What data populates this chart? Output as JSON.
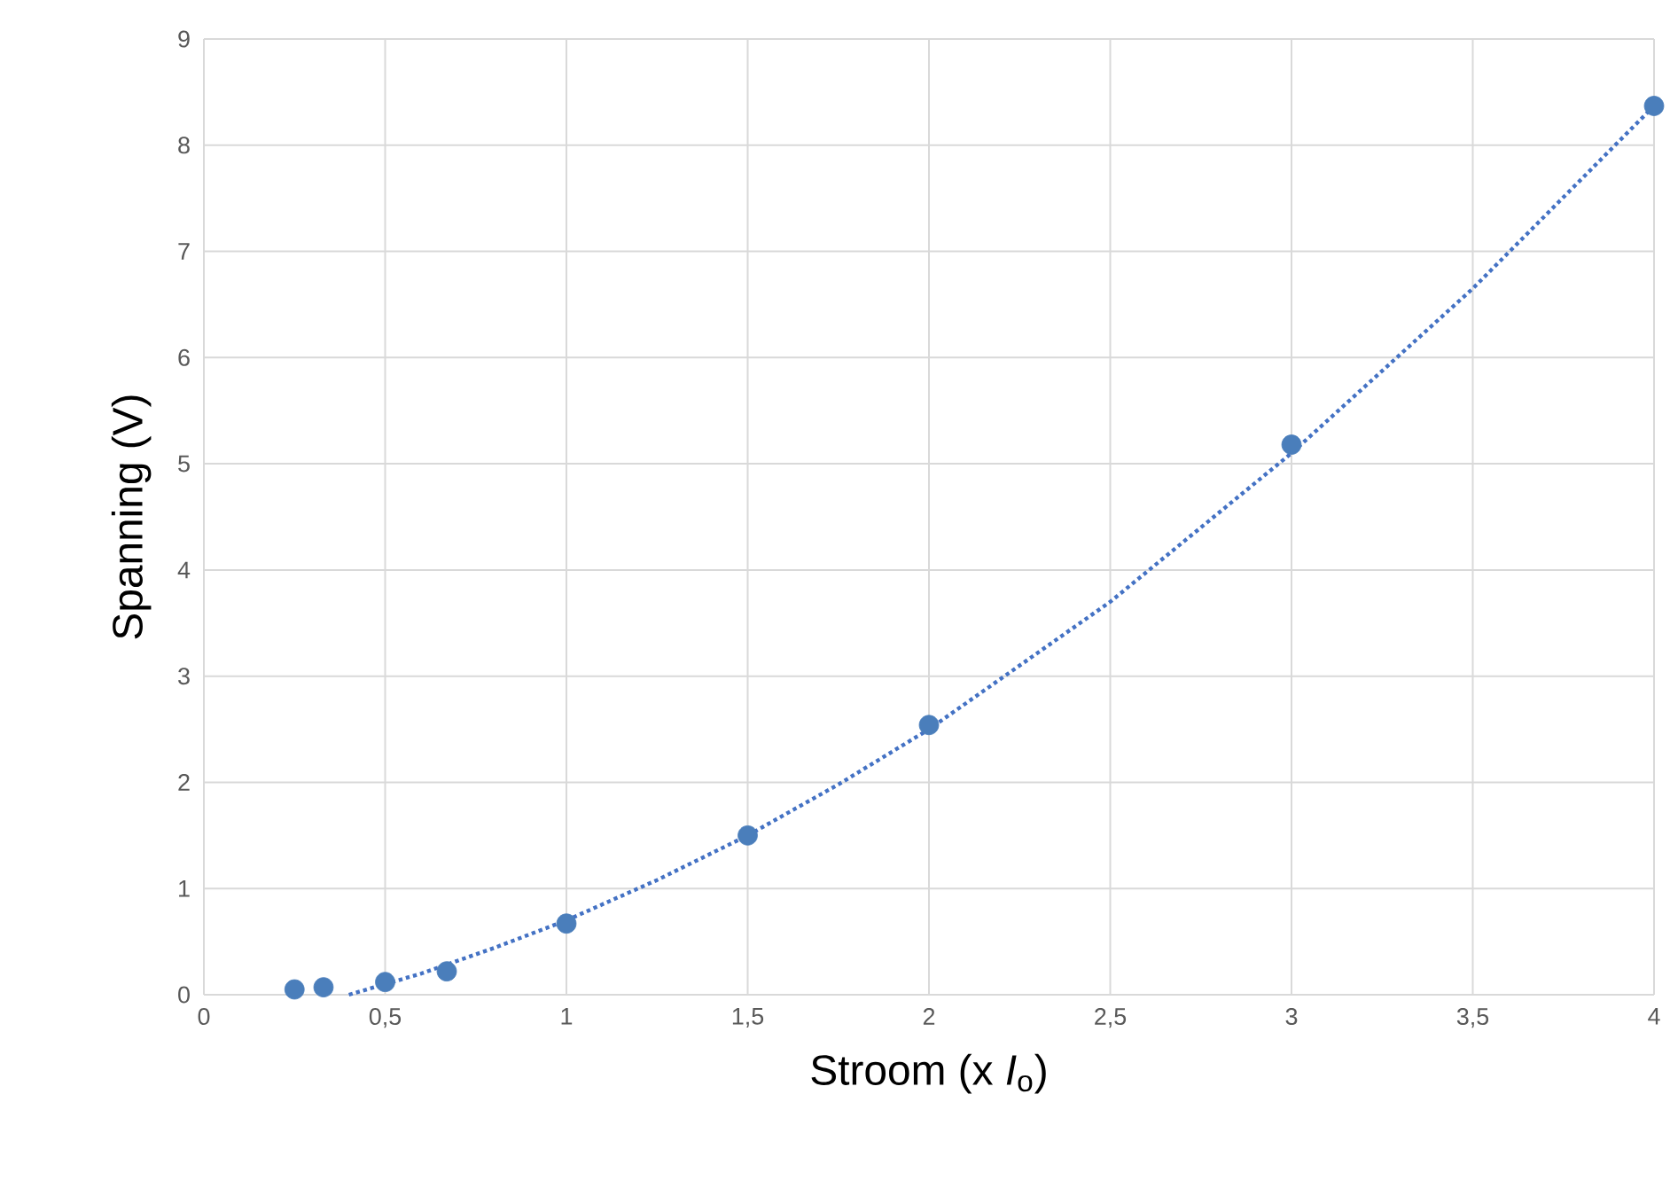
{
  "chart_data": {
    "type": "scatter",
    "xlabel": "Stroom (x *I*$_{o}$)",
    "ylabel": "Spanning (V)",
    "xlim": [
      0,
      4
    ],
    "ylim": [
      0,
      9
    ],
    "xticks": [
      0,
      {
        "value": 0.5,
        "label": "0,5"
      },
      1,
      {
        "value": 1.5,
        "label": "1,5"
      },
      2,
      {
        "value": 2.5,
        "label": "2,5"
      },
      3,
      {
        "value": 3.5,
        "label": "3,5"
      },
      4
    ],
    "yticks": [
      0,
      1,
      2,
      3,
      4,
      5,
      6,
      7,
      8,
      9
    ],
    "grid": true,
    "series": [
      {
        "marker": "circle",
        "color": "#4a7ebb",
        "x": [
          0.25,
          0.33,
          0.5,
          0.67,
          1,
          1.5,
          2,
          3,
          4
        ],
        "values": [
          0.05,
          0.07,
          0.12,
          0.22,
          0.67,
          1.5,
          2.54,
          5.18,
          8.37
        ]
      },
      {
        "type": "line",
        "line_style": "dotted",
        "marker": "none",
        "color": "#4472c4",
        "x": [
          0.4,
          0.6,
          0.8,
          1,
          1.25,
          1.5,
          1.75,
          2,
          2.5,
          3,
          3.5,
          4
        ],
        "values": [
          0.0,
          0.2,
          0.44,
          0.7,
          1.08,
          1.5,
          1.98,
          2.5,
          3.7,
          5.1,
          6.65,
          8.37
        ]
      }
    ]
  }
}
